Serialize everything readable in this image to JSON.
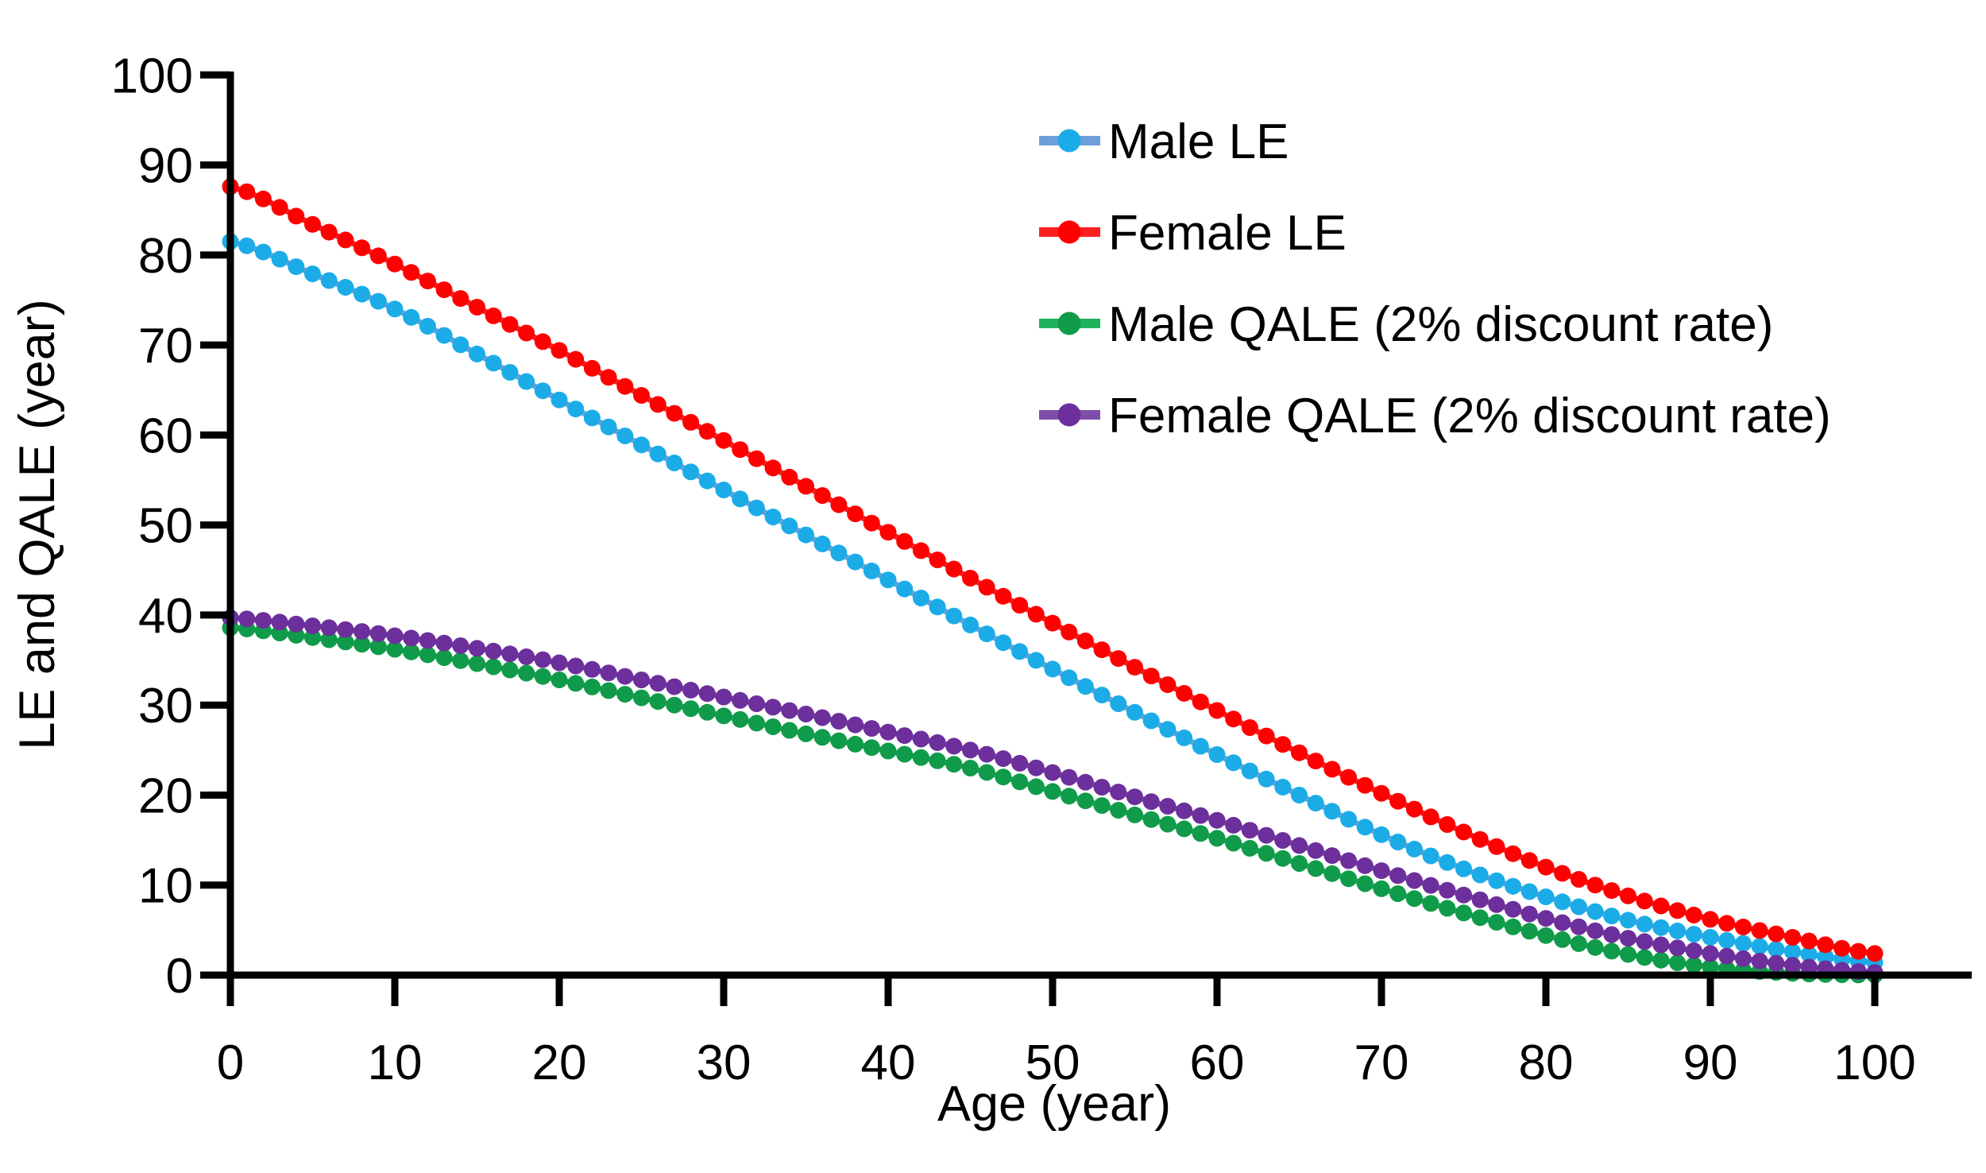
{
  "figure": {
    "background_color": "#FFFFFF",
    "axis_color": "#000000",
    "text_color": "#000000"
  },
  "chart_data": {
    "type": "line",
    "title": "",
    "xlabel": "Age (year)",
    "ylabel": "LE and QALE (year)",
    "xlim": [
      0,
      100
    ],
    "ylim": [
      0,
      100
    ],
    "x_ticks": [
      0,
      10,
      20,
      30,
      40,
      50,
      60,
      70,
      80,
      90,
      100
    ],
    "y_ticks": [
      0,
      10,
      20,
      30,
      40,
      50,
      60,
      70,
      80,
      90,
      100
    ],
    "grid": false,
    "legend_position": "upper-right-inside",
    "marker": "circle",
    "markers_every_years": 1,
    "anchor_ages": [
      0,
      5,
      10,
      15,
      20,
      25,
      30,
      35,
      40,
      45,
      50,
      55,
      60,
      65,
      70,
      75,
      80,
      85,
      90,
      95,
      100
    ],
    "series": [
      {
        "name": "Male LE",
        "marker_color": "#1BACE8",
        "line_color": "#6D9FD8",
        "values": [
          81.5,
          77.9,
          74.0,
          69.0,
          63.9,
          58.9,
          53.9,
          48.9,
          43.9,
          38.9,
          34.0,
          29.2,
          24.5,
          20.0,
          15.6,
          11.8,
          8.7,
          6.1,
          4.2,
          2.6,
          1.4
        ]
      },
      {
        "name": "Female LE",
        "marker_color": "#FE0000",
        "line_color": "#FB2020",
        "values": [
          87.6,
          83.4,
          79.0,
          74.2,
          69.4,
          64.4,
          59.4,
          54.3,
          49.2,
          44.1,
          39.1,
          34.2,
          29.4,
          24.7,
          20.2,
          15.9,
          12.0,
          8.8,
          6.2,
          4.2,
          2.4
        ]
      },
      {
        "name": "Male QALE (2% discount rate)",
        "marker_color": "#109B4A",
        "line_color": "#1FB25C",
        "values": [
          38.6,
          37.5,
          36.2,
          34.6,
          32.8,
          30.8,
          28.8,
          26.8,
          24.9,
          23.0,
          20.4,
          17.8,
          15.2,
          12.4,
          9.6,
          6.9,
          4.4,
          2.3,
          0.9,
          0.2,
          0.0
        ]
      },
      {
        "name": "Female QALE (2% discount rate)",
        "marker_color": "#6C2F9B",
        "line_color": "#7E4FA8",
        "values": [
          39.7,
          38.8,
          37.7,
          36.3,
          34.7,
          32.8,
          30.9,
          29.0,
          27.0,
          25.0,
          22.5,
          19.8,
          17.2,
          14.4,
          11.6,
          8.9,
          6.3,
          4.1,
          2.4,
          1.1,
          0.3
        ]
      }
    ],
    "draw_order": [
      0,
      1,
      2,
      3
    ],
    "legend_order": [
      0,
      1,
      2,
      3
    ]
  }
}
